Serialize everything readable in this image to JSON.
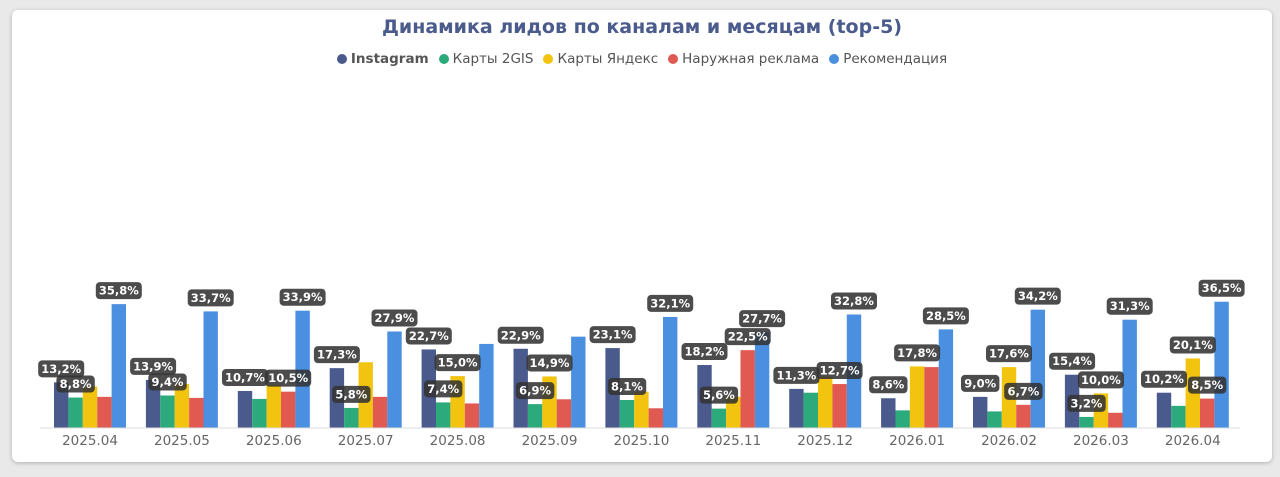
{
  "chart_data": {
    "type": "bar",
    "title": "Динамика лидов по каналам и месяцам (top-5)",
    "xlabel": "",
    "ylabel": "",
    "ylim": [
      0,
      100
    ],
    "grid": false,
    "legend_position": "top",
    "categories": [
      "2025.04",
      "2025.05",
      "2025.06",
      "2025.07",
      "2025.08",
      "2025.09",
      "2025.10",
      "2025.11",
      "2025.12",
      "2026.01",
      "2026.02",
      "2026.03",
      "2026.04"
    ],
    "series": [
      {
        "name": "Instagram",
        "color": "#4a5a8c",
        "values": [
          13.2,
          13.9,
          10.7,
          17.3,
          22.7,
          22.9,
          23.1,
          18.2,
          11.3,
          8.6,
          9.0,
          15.4,
          10.2
        ],
        "labels": [
          "13,2%",
          "13,9%",
          "10,7%",
          "17,3%",
          "22,7%",
          "22,9%",
          "23,1%",
          "18,2%",
          "11,3%",
          "8,6%",
          "9,0%",
          "15,4%",
          "10,2%"
        ]
      },
      {
        "name": "Карты 2GIS",
        "color": "#2daa7b",
        "values": [
          8.8,
          9.4,
          8.4,
          5.8,
          7.4,
          6.9,
          8.1,
          5.6,
          10.2,
          5.1,
          4.8,
          3.2,
          6.4
        ],
        "labels": [
          "8,8%",
          "9,4%",
          null,
          "5,8%",
          "7,4%",
          "6,9%",
          "8,1%",
          "5,6%",
          null,
          null,
          null,
          "3,2%",
          null
        ]
      },
      {
        "name": "Карты Яндекс",
        "color": "#f2c40f",
        "values": [
          12.0,
          12.7,
          12.5,
          19.0,
          15.0,
          14.9,
          10.5,
          9.0,
          14.8,
          17.8,
          17.6,
          10.0,
          20.1
        ],
        "labels": [
          null,
          null,
          null,
          null,
          "15,0%",
          "14,9%",
          null,
          null,
          null,
          "17,8%",
          "17,6%",
          "10,0%",
          "20,1%"
        ]
      },
      {
        "name": "Наружная реклама",
        "color": "#e05a52",
        "values": [
          9.0,
          8.7,
          10.5,
          9.0,
          7.1,
          8.3,
          5.7,
          22.5,
          12.7,
          17.6,
          6.7,
          4.4,
          8.5
        ],
        "labels": [
          null,
          null,
          "10,5%",
          null,
          null,
          null,
          null,
          "22,5%",
          "12,7%",
          null,
          "6,7%",
          null,
          "8,5%"
        ]
      },
      {
        "name": "Рекомендация",
        "color": "#4a8fe0",
        "values": [
          35.8,
          33.7,
          33.9,
          27.9,
          24.3,
          26.4,
          32.1,
          27.7,
          32.8,
          28.5,
          34.2,
          31.3,
          36.5
        ],
        "labels": [
          "35,8%",
          "33,7%",
          "33,9%",
          "27,9%",
          null,
          null,
          "32,1%",
          "27,7%",
          "32,8%",
          "28,5%",
          "34,2%",
          "31,3%",
          "36,5%"
        ]
      }
    ]
  }
}
